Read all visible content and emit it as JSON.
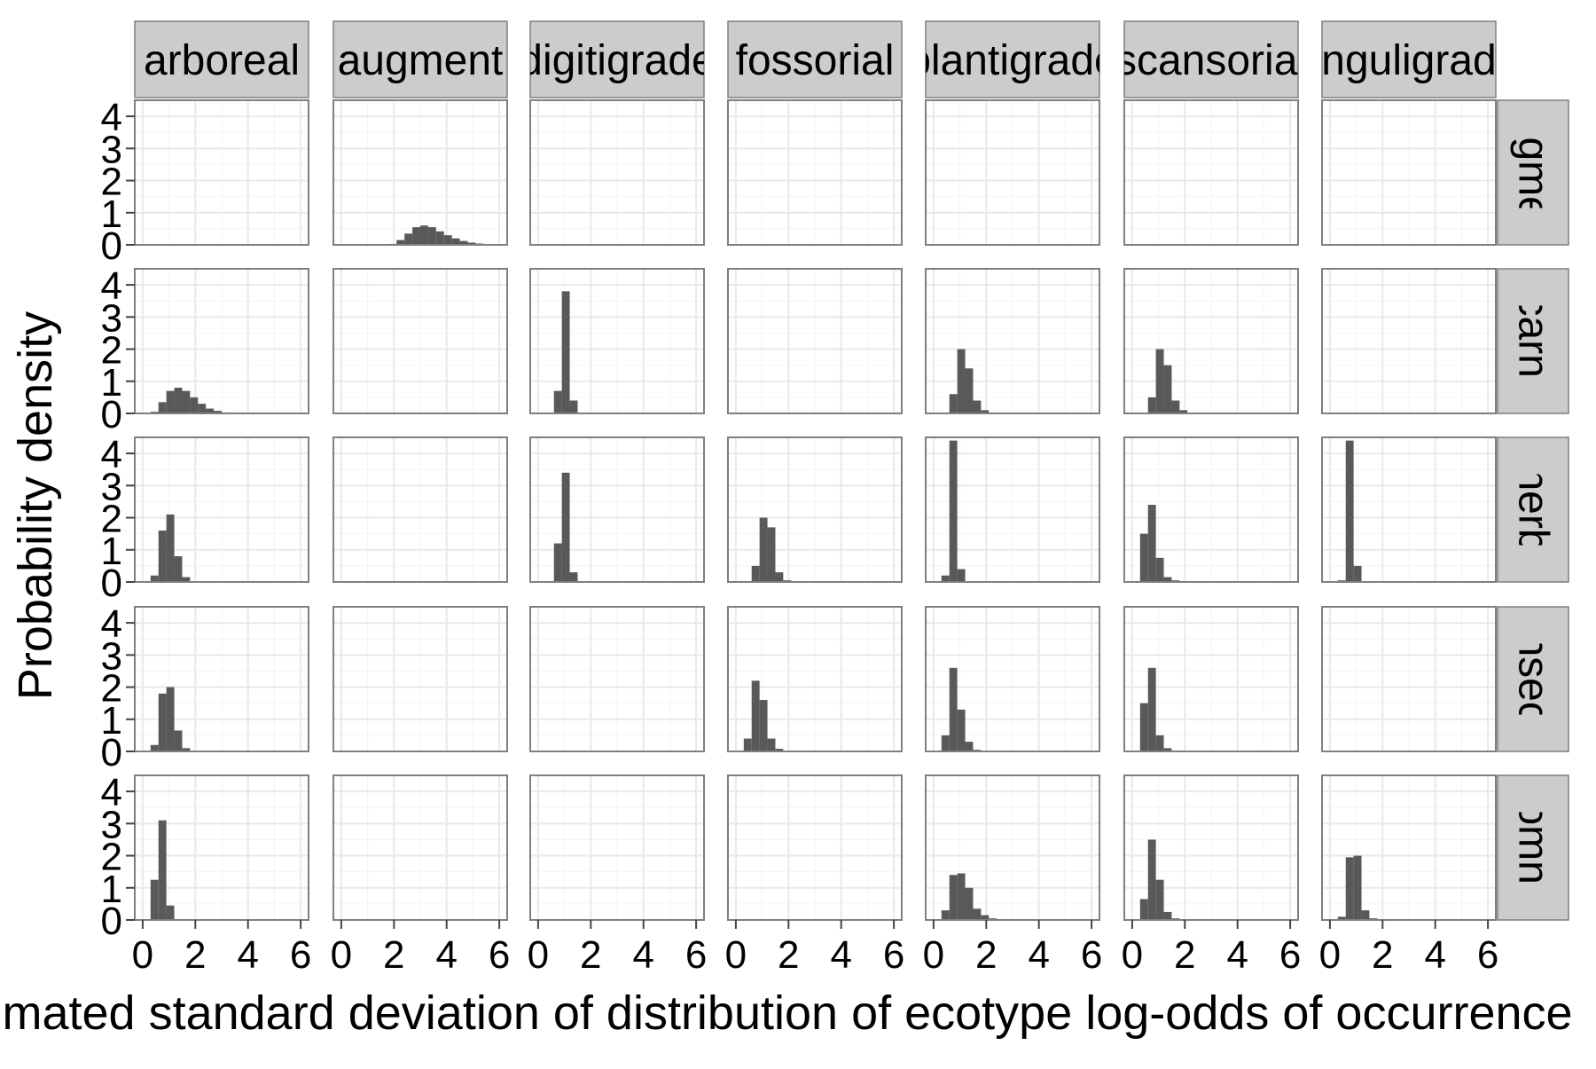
{
  "chart_data": {
    "type": "histogram-facet-grid",
    "title": "",
    "xlabel": "Estimated standard deviation of distribution of ecotype log-odds of occurrence",
    "ylabel": "Probability density",
    "xlim": [
      -0.3,
      6.3
    ],
    "ylim": [
      0,
      4.5
    ],
    "x_ticks": [
      0,
      2,
      4,
      6
    ],
    "y_ticks": [
      0,
      1,
      2,
      3,
      4
    ],
    "x_tick_labels": [
      "0",
      "2",
      "4",
      "6"
    ],
    "y_tick_labels": [
      "0",
      "1",
      "2",
      "3",
      "4"
    ],
    "grid": true,
    "bin_width": 0.3,
    "column_facets": [
      "arboreal",
      "augment",
      "digitigrade",
      "fossorial",
      "plantigrade",
      "scansorial",
      "unguligrade"
    ],
    "row_facets": [
      "augment",
      "carni",
      "herb",
      "insect",
      "omni"
    ],
    "panels": [
      {
        "row": "augment",
        "col": "augment",
        "bins": [
          [
            1.8,
            0.03
          ],
          [
            2.1,
            0.15
          ],
          [
            2.4,
            0.35
          ],
          [
            2.7,
            0.55
          ],
          [
            3.0,
            0.6
          ],
          [
            3.3,
            0.55
          ],
          [
            3.6,
            0.42
          ],
          [
            3.9,
            0.3
          ],
          [
            4.2,
            0.2
          ],
          [
            4.5,
            0.12
          ],
          [
            4.8,
            0.07
          ],
          [
            5.1,
            0.04
          ],
          [
            5.4,
            0.02
          ]
        ]
      },
      {
        "row": "carni",
        "col": "arboreal",
        "bins": [
          [
            0.3,
            0.05
          ],
          [
            0.6,
            0.35
          ],
          [
            0.9,
            0.7
          ],
          [
            1.2,
            0.8
          ],
          [
            1.5,
            0.7
          ],
          [
            1.8,
            0.5
          ],
          [
            2.1,
            0.3
          ],
          [
            2.4,
            0.15
          ],
          [
            2.7,
            0.08
          ],
          [
            3.0,
            0.03
          ]
        ]
      },
      {
        "row": "carni",
        "col": "digitigrade",
        "bins": [
          [
            0.6,
            0.7
          ],
          [
            0.9,
            3.8
          ],
          [
            1.2,
            0.4
          ]
        ]
      },
      {
        "row": "carni",
        "col": "plantigrade",
        "bins": [
          [
            0.6,
            0.6
          ],
          [
            0.9,
            2.0
          ],
          [
            1.2,
            1.4
          ],
          [
            1.5,
            0.4
          ],
          [
            1.8,
            0.1
          ]
        ]
      },
      {
        "row": "carni",
        "col": "scansorial",
        "bins": [
          [
            0.6,
            0.5
          ],
          [
            0.9,
            2.0
          ],
          [
            1.2,
            1.5
          ],
          [
            1.5,
            0.4
          ],
          [
            1.8,
            0.1
          ]
        ]
      },
      {
        "row": "herb",
        "col": "arboreal",
        "bins": [
          [
            0.3,
            0.2
          ],
          [
            0.6,
            1.6
          ],
          [
            0.9,
            2.1
          ],
          [
            1.2,
            0.8
          ],
          [
            1.5,
            0.15
          ]
        ]
      },
      {
        "row": "herb",
        "col": "digitigrade",
        "bins": [
          [
            0.6,
            1.2
          ],
          [
            0.9,
            3.4
          ],
          [
            1.2,
            0.3
          ]
        ]
      },
      {
        "row": "herb",
        "col": "fossorial",
        "bins": [
          [
            0.6,
            0.5
          ],
          [
            0.9,
            2.0
          ],
          [
            1.2,
            1.7
          ],
          [
            1.5,
            0.3
          ],
          [
            1.8,
            0.05
          ]
        ]
      },
      {
        "row": "herb",
        "col": "plantigrade",
        "bins": [
          [
            0.3,
            0.2
          ],
          [
            0.6,
            4.4
          ],
          [
            0.9,
            0.4
          ]
        ]
      },
      {
        "row": "herb",
        "col": "scansorial",
        "bins": [
          [
            0.3,
            1.5
          ],
          [
            0.6,
            2.4
          ],
          [
            0.9,
            0.75
          ],
          [
            1.2,
            0.15
          ],
          [
            1.5,
            0.05
          ]
        ]
      },
      {
        "row": "herb",
        "col": "unguligrade",
        "bins": [
          [
            0.3,
            0.05
          ],
          [
            0.6,
            4.4
          ],
          [
            0.9,
            0.5
          ]
        ]
      },
      {
        "row": "insect",
        "col": "arboreal",
        "bins": [
          [
            0.3,
            0.2
          ],
          [
            0.6,
            1.8
          ],
          [
            0.9,
            2.0
          ],
          [
            1.2,
            0.65
          ],
          [
            1.5,
            0.1
          ]
        ]
      },
      {
        "row": "insect",
        "col": "fossorial",
        "bins": [
          [
            0.3,
            0.4
          ],
          [
            0.6,
            2.2
          ],
          [
            0.9,
            1.6
          ],
          [
            1.2,
            0.4
          ],
          [
            1.5,
            0.08
          ]
        ]
      },
      {
        "row": "insect",
        "col": "plantigrade",
        "bins": [
          [
            0.3,
            0.5
          ],
          [
            0.6,
            2.6
          ],
          [
            0.9,
            1.3
          ],
          [
            1.2,
            0.3
          ],
          [
            1.5,
            0.05
          ]
        ]
      },
      {
        "row": "insect",
        "col": "scansorial",
        "bins": [
          [
            0.3,
            1.5
          ],
          [
            0.6,
            2.6
          ],
          [
            0.9,
            0.5
          ],
          [
            1.2,
            0.1
          ]
        ]
      },
      {
        "row": "omni",
        "col": "arboreal",
        "bins": [
          [
            0.3,
            1.25
          ],
          [
            0.6,
            3.1
          ],
          [
            0.9,
            0.45
          ]
        ]
      },
      {
        "row": "omni",
        "col": "plantigrade",
        "bins": [
          [
            0.3,
            0.3
          ],
          [
            0.6,
            1.4
          ],
          [
            0.9,
            1.45
          ],
          [
            1.2,
            1.0
          ],
          [
            1.5,
            0.35
          ],
          [
            1.8,
            0.15
          ],
          [
            2.1,
            0.05
          ]
        ]
      },
      {
        "row": "omni",
        "col": "scansorial",
        "bins": [
          [
            0.3,
            0.65
          ],
          [
            0.6,
            2.5
          ],
          [
            0.9,
            1.25
          ],
          [
            1.2,
            0.25
          ],
          [
            1.5,
            0.05
          ]
        ]
      },
      {
        "row": "omni",
        "col": "unguligrade",
        "bins": [
          [
            0.3,
            0.1
          ],
          [
            0.6,
            1.95
          ],
          [
            0.9,
            2.0
          ],
          [
            1.2,
            0.3
          ],
          [
            1.5,
            0.05
          ]
        ]
      }
    ]
  },
  "colors": {
    "bar": "#595959",
    "panel_bg": "#ffffff",
    "panel_border": "#7f7f7f",
    "grid_major": "#e9e9e9",
    "grid_minor": "#f4f4f4",
    "strip_bg": "#cccccc",
    "text": "#000000"
  }
}
